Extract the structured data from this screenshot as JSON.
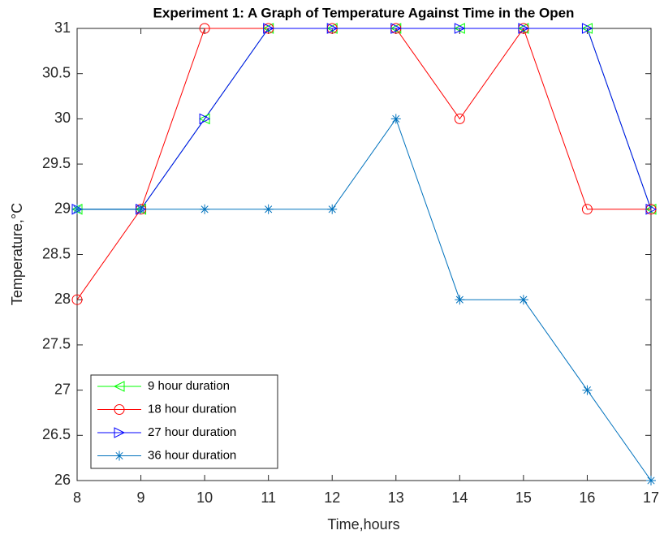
{
  "chart_data": {
    "type": "line",
    "title": "Experiment 1: A Graph of Temperature Against Time in the Open",
    "x_label": "Time,hours",
    "y_label": "Temperature,°C",
    "x": [
      8,
      9,
      10,
      11,
      12,
      13,
      14,
      15,
      16,
      17
    ],
    "series": [
      {
        "name": "9 hour duration",
        "color": "#00ff00",
        "marker": "triangle-left",
        "values": [
          29,
          29,
          30,
          31,
          31,
          31,
          31,
          31,
          31,
          29
        ]
      },
      {
        "name": "18 hour duration",
        "color": "#ff0000",
        "marker": "circle",
        "values": [
          28,
          29,
          31,
          31,
          31,
          31,
          30,
          31,
          29,
          29
        ]
      },
      {
        "name": "27 hour duration",
        "color": "#0000ff",
        "marker": "triangle-right",
        "values": [
          29,
          29,
          30,
          31,
          31,
          31,
          31,
          31,
          31,
          29
        ]
      },
      {
        "name": "36 hour duration",
        "color": "#0072bd",
        "marker": "asterisk",
        "values": [
          29,
          29,
          29,
          29,
          29,
          30,
          28,
          28,
          27,
          26
        ]
      }
    ],
    "xlim": [
      8,
      17
    ],
    "xticks": [
      8,
      9,
      10,
      11,
      12,
      13,
      14,
      15,
      16,
      17
    ],
    "ylim": [
      26,
      31
    ],
    "yticks": [
      26,
      26.5,
      27,
      27.5,
      28,
      28.5,
      29,
      29.5,
      30,
      30.5,
      31
    ],
    "grid": false,
    "legend": "lower left"
  }
}
